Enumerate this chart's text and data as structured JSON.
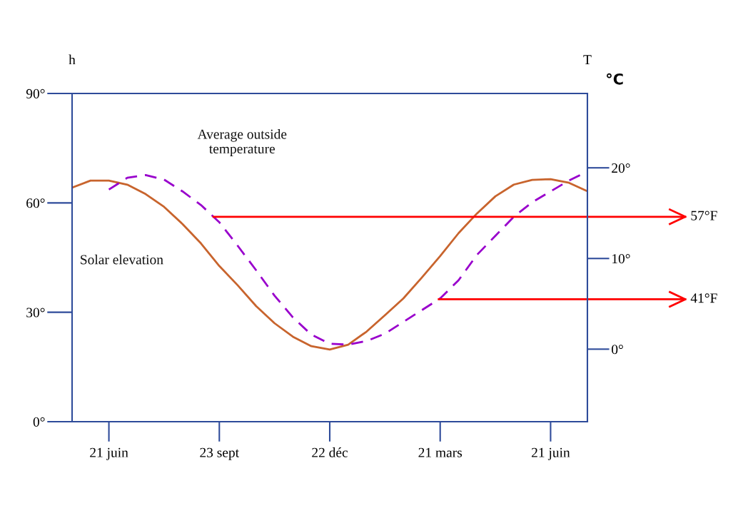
{
  "chart_data": {
    "type": "line",
    "ylabel": "h",
    "y2label": "T",
    "annotations": [
      "°C"
    ],
    "ref_lines": [
      {
        "axis": "y2",
        "value": 14.6,
        "label": "57°F",
        "color": "#ff0000",
        "line_style": "solid"
      },
      {
        "axis": "y2",
        "value": 5.5,
        "label": "41°F",
        "color": "#ff0000",
        "line_style": "solid"
      }
    ],
    "categories": [
      null,
      null,
      "21 juin",
      null,
      null,
      null,
      null,
      null,
      "23 sept",
      null,
      null,
      null,
      null,
      null,
      "22 déc",
      null,
      null,
      null,
      null,
      null,
      "21 mars",
      null,
      null,
      null,
      null,
      null,
      "21 juin",
      null,
      null
    ],
    "ylim": [
      0,
      90
    ],
    "yticks": [
      {
        "value": 0,
        "label": "0°"
      },
      {
        "value": 30,
        "label": "30°"
      },
      {
        "value": 60,
        "label": "60°"
      },
      {
        "value": 90,
        "label": "90°"
      }
    ],
    "y2lim": [
      -8.0,
      28.2
    ],
    "y2ticks": [
      {
        "value": 0,
        "label": "0°"
      },
      {
        "value": 10,
        "label": "10°"
      },
      {
        "value": 20,
        "label": "20°"
      }
    ],
    "grid": false,
    "legend": false,
    "marker": "none",
    "series": [
      {
        "name": "Solar elevation",
        "color": "#c8642d",
        "line_style": "solid",
        "values": [
          64.2,
          66.1,
          66.1,
          65.0,
          62.4,
          58.9,
          54.2,
          48.9,
          42.7,
          37.4,
          31.7,
          27.0,
          23.3,
          20.7,
          19.8,
          21.1,
          24.7,
          29.2,
          33.8,
          39.5,
          45.4,
          51.7,
          57.1,
          61.8,
          65.0,
          66.3,
          66.5,
          65.5,
          63.2
        ]
      },
      {
        "name": "Average outside\ntemperature",
        "color": "#9900cc",
        "line_style": "dashed",
        "axis": "y2",
        "values": [
          null,
          null,
          17.6,
          18.9,
          19.2,
          18.7,
          17.4,
          15.9,
          14.0,
          11.4,
          8.7,
          5.9,
          3.5,
          1.6,
          0.6,
          0.5,
          0.9,
          1.7,
          3.0,
          4.3,
          5.6,
          7.6,
          10.4,
          12.5,
          14.6,
          16.2,
          17.4,
          18.6,
          19.6
        ]
      }
    ]
  }
}
